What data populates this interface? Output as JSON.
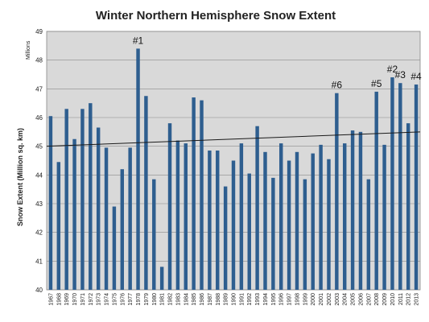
{
  "chart_data": {
    "type": "bar",
    "title": "Winter Northern Hemisphere Snow Extent",
    "ylabel": "Snow Extent (Million sq. km)",
    "units_label": "Millions",
    "xlabel": "",
    "ylim": [
      40,
      49
    ],
    "yticks": [
      40,
      41,
      42,
      43,
      44,
      45,
      46,
      47,
      48,
      49
    ],
    "grid": true,
    "bar_color": "#2e5e8f",
    "plot_background": "#d9d9d9",
    "categories": [
      "1967",
      "1968",
      "1969",
      "1970",
      "1971",
      "1972",
      "1973",
      "1974",
      "1975",
      "1976",
      "1977",
      "1978",
      "1979",
      "1980",
      "1981",
      "1982",
      "1983",
      "1984",
      "1985",
      "1986",
      "1987",
      "1988",
      "1989",
      "1990",
      "1991",
      "1992",
      "1993",
      "1994",
      "1995",
      "1996",
      "1997",
      "1998",
      "1999",
      "2000",
      "2001",
      "2002",
      "2003",
      "2004",
      "2005",
      "2006",
      "2007",
      "2008",
      "2009",
      "2010",
      "2011",
      "2012",
      "2013"
    ],
    "values": [
      46.05,
      44.45,
      46.3,
      45.25,
      46.3,
      46.5,
      45.65,
      44.95,
      42.9,
      44.2,
      44.95,
      48.4,
      46.75,
      43.85,
      40.8,
      45.8,
      45.2,
      45.1,
      46.7,
      46.6,
      44.85,
      44.85,
      43.6,
      44.5,
      45.1,
      44.05,
      45.7,
      44.8,
      43.9,
      45.1,
      44.5,
      44.8,
      43.85,
      44.75,
      45.05,
      44.55,
      46.85,
      45.1,
      45.55,
      45.5,
      43.85,
      46.9,
      45.05,
      47.4,
      47.2,
      45.8,
      47.15
    ],
    "trendline": {
      "x": [
        "1967",
        "2013"
      ],
      "y": [
        45.0,
        45.5
      ]
    },
    "annotations": [
      {
        "category": "1978",
        "text": "#1"
      },
      {
        "category": "2003",
        "text": "#6"
      },
      {
        "category": "2008",
        "text": "#5"
      },
      {
        "category": "2010",
        "text": "#2"
      },
      {
        "category": "2011",
        "text": "#3"
      },
      {
        "category": "2013",
        "text": "#4"
      }
    ]
  }
}
